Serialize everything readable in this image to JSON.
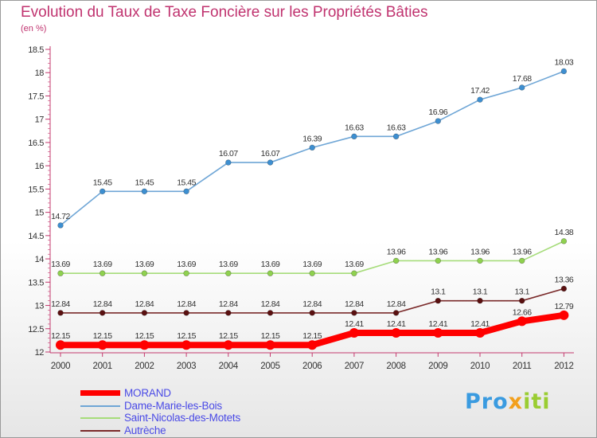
{
  "header": {
    "title": "Evolution du Taux de Taxe Foncière sur les Propriétés Bâties",
    "subtitle": "(en %)"
  },
  "brand": {
    "part1": "Pro",
    "part2": "x",
    "part3": "iti"
  },
  "chart_data": {
    "type": "line",
    "title": "Evolution du Taux de Taxe Foncière sur les Propriétés Bâties",
    "ylabel": "(en %)",
    "x": [
      "2000",
      "2001",
      "2002",
      "2003",
      "2004",
      "2005",
      "2006",
      "2007",
      "2008",
      "2009",
      "2010",
      "2011",
      "2012"
    ],
    "ylim": [
      12,
      18.5
    ],
    "yticks": [
      12,
      12.5,
      13,
      13.5,
      14,
      14.5,
      15,
      15.5,
      16,
      16.5,
      17,
      17.5,
      18,
      18.5
    ],
    "grid": false,
    "legend": "bottom-left",
    "series": [
      {
        "name": "MORAND",
        "color": "#ff0000",
        "values": [
          12.15,
          12.15,
          12.15,
          12.15,
          12.15,
          12.15,
          12.15,
          12.41,
          12.41,
          12.41,
          12.41,
          12.66,
          12.79
        ],
        "labels": [
          "12.15",
          "12.15",
          "12.15",
          "12.15",
          "12.15",
          "12.15",
          "12.15",
          "12.41",
          "12.41",
          "12.41",
          "12.41",
          "12.66",
          "12.79"
        ]
      },
      {
        "name": "Dame-Marie-les-Bois",
        "color": "#6fa6d6",
        "point_color": "#3d8fd1",
        "values": [
          14.72,
          15.45,
          15.45,
          15.45,
          16.07,
          16.07,
          16.39,
          16.63,
          16.63,
          16.96,
          17.42,
          17.68,
          18.03
        ],
        "labels": [
          "14.72",
          "15.45",
          "15.45",
          "15.45",
          "16.07",
          "16.07",
          "16.39",
          "16.63",
          "16.63",
          "16.96",
          "17.42",
          "17.68",
          "18.03"
        ]
      },
      {
        "name": "Saint-Nicolas-des-Motets",
        "color": "#a6dc7a",
        "point_color": "#8fd14f",
        "values": [
          13.69,
          13.69,
          13.69,
          13.69,
          13.69,
          13.69,
          13.69,
          13.69,
          13.96,
          13.96,
          13.96,
          13.96,
          14.38
        ],
        "labels": [
          "13.69",
          "13.69",
          "13.69",
          "13.69",
          "13.69",
          "13.69",
          "13.69",
          "13.69",
          "13.96",
          "13.96",
          "13.96",
          "13.96",
          "14.38"
        ]
      },
      {
        "name": "Autrèche",
        "color": "#7a2a2a",
        "point_color": "#5a1010",
        "values": [
          12.84,
          12.84,
          12.84,
          12.84,
          12.84,
          12.84,
          12.84,
          12.84,
          12.84,
          13.1,
          13.1,
          13.1,
          13.36
        ],
        "labels": [
          "12.84",
          "12.84",
          "12.84",
          "12.84",
          "12.84",
          "12.84",
          "12.84",
          "12.84",
          "12.84",
          "13.1",
          "13.1",
          "13.1",
          "13.36"
        ]
      }
    ]
  }
}
